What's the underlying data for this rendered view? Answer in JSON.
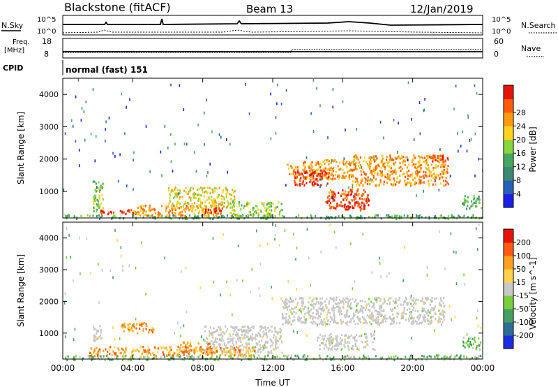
{
  "header": {
    "station": "Blackstone (fitACF)",
    "beam": "Beam 13",
    "date": "12/Jan/2019"
  },
  "top_panels": {
    "nsky_label": "N.Sky",
    "nsearch_label": "N.Search",
    "noise_ticks": [
      "10^5",
      "10^0"
    ],
    "freq_label_1": "Freq.",
    "freq_label_2": "[MHz]",
    "freq_ticks": [
      "18",
      "8"
    ],
    "nave_label": "Nave",
    "nave_ticks": [
      "60",
      "0"
    ],
    "cpid_label": "CPID",
    "cpid_value": "normal (fast) 151"
  },
  "chart_data": [
    {
      "type": "heatmap",
      "parameter": "power",
      "ylabel": "Slant Range [km]",
      "ylim": [
        180,
        4500
      ],
      "yticks": [
        1000,
        2000,
        3000,
        4000
      ],
      "xlim": [
        0,
        24
      ],
      "colorbar": {
        "label": "Power [dB]",
        "ticks": [
          4,
          8,
          12,
          16,
          20,
          24,
          28
        ],
        "colors": [
          "#1a1ee6",
          "#2660b8",
          "#3a8a70",
          "#46a860",
          "#8ad43c",
          "#ffd21c",
          "#ff9a10",
          "#ff5a0a",
          "#e61408"
        ]
      },
      "regions": [
        {
          "x0": 0.0,
          "x1": 24.0,
          "y0": 180,
          "y1": 300,
          "level": 3
        },
        {
          "x0": 1.7,
          "x1": 2.3,
          "y0": 300,
          "y1": 1350,
          "level": 4
        },
        {
          "x0": 2.0,
          "x1": 4.2,
          "y0": 330,
          "y1": 460,
          "level": 8
        },
        {
          "x0": 4.0,
          "x1": 9.0,
          "y0": 260,
          "y1": 600,
          "level": 6
        },
        {
          "x0": 6.0,
          "x1": 9.8,
          "y0": 500,
          "y1": 1150,
          "level": 5
        },
        {
          "x0": 8.0,
          "x1": 9.2,
          "y0": 320,
          "y1": 520,
          "level": 8
        },
        {
          "x0": 9.5,
          "x1": 12.5,
          "y0": 250,
          "y1": 700,
          "level": 4
        },
        {
          "x0": 12.8,
          "x1": 16.5,
          "y0": 1400,
          "y1": 2000,
          "level": 6
        },
        {
          "x0": 13.2,
          "x1": 15.2,
          "y0": 1200,
          "y1": 1700,
          "level": 8
        },
        {
          "x0": 15.0,
          "x1": 17.5,
          "y0": 500,
          "y1": 1100,
          "level": 7
        },
        {
          "x0": 16.0,
          "x1": 17.2,
          "y0": 450,
          "y1": 700,
          "level": 8
        },
        {
          "x0": 16.5,
          "x1": 22.0,
          "y0": 1200,
          "y1": 2150,
          "level": 6
        },
        {
          "x0": 21.0,
          "x1": 22.0,
          "y0": 1900,
          "y1": 2150,
          "level": 7
        },
        {
          "x0": 22.8,
          "x1": 23.9,
          "y0": 480,
          "y1": 900,
          "level": 3
        }
      ]
    },
    {
      "type": "heatmap",
      "parameter": "velocity",
      "ylabel": "Slant Range [km]",
      "ylim": [
        180,
        4500
      ],
      "yticks": [
        1000,
        2000,
        3000,
        4000
      ],
      "xlabel": "Time UT",
      "xticks": [
        "00:00",
        "04:00",
        "08:00",
        "12:00",
        "16:00",
        "20:00",
        "00:00"
      ],
      "xlim": [
        0,
        24
      ],
      "colorbar": {
        "label": "Velocity [m s^-1]",
        "ticks": [
          200,
          100,
          50,
          15,
          -15,
          -50,
          -100,
          -200
        ],
        "colors": [
          "#1a2ee0",
          "#2c6e94",
          "#44a060",
          "#78d03c",
          "#c8c8c8",
          "#ffd24a",
          "#ffa020",
          "#ff5a10",
          "#e61408"
        ]
      },
      "regions": [
        {
          "x0": 0.0,
          "x1": 24.0,
          "y0": 180,
          "y1": 330,
          "level": 3
        },
        {
          "x0": 1.7,
          "x1": 2.2,
          "y0": 700,
          "y1": 1300,
          "level": 4
        },
        {
          "x0": 3.3,
          "x1": 5.2,
          "y0": 1000,
          "y1": 1350,
          "level": 6
        },
        {
          "x0": 6.5,
          "x1": 8.5,
          "y0": 450,
          "y1": 750,
          "level": 6
        },
        {
          "x0": 8.0,
          "x1": 12.5,
          "y0": 400,
          "y1": 1250,
          "level": 4
        },
        {
          "x0": 12.5,
          "x1": 21.8,
          "y0": 1300,
          "y1": 2150,
          "level": 4
        },
        {
          "x0": 14.5,
          "x1": 17.8,
          "y0": 500,
          "y1": 1000,
          "level": 4
        },
        {
          "x0": 22.8,
          "x1": 23.9,
          "y0": 500,
          "y1": 900,
          "level": 3
        },
        {
          "x0": 1.5,
          "x1": 11.0,
          "y0": 300,
          "y1": 600,
          "level": 6
        }
      ]
    }
  ]
}
